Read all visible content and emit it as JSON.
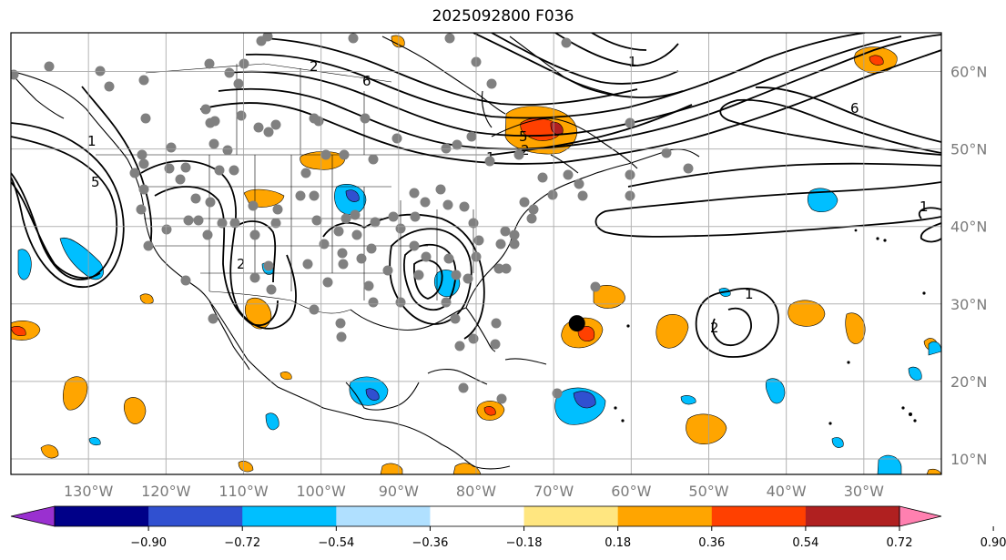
{
  "title": "2025092800 F036",
  "map": {
    "projection": "PlateCarree",
    "lon_range": [
      -140,
      -20
    ],
    "lat_range": [
      8,
      65
    ],
    "gridlines": true,
    "lon_ticks": [
      "130°W",
      "120°W",
      "110°W",
      "100°W",
      "90°W",
      "80°W",
      "70°W",
      "60°W",
      "50°W",
      "40°W",
      "30°W"
    ],
    "lat_ticks": [
      "60°N",
      "50°N",
      "40°N",
      "30°N",
      "20°N",
      "10°N"
    ],
    "contour_labels": [
      "2",
      "6",
      "5",
      "1",
      "2",
      "5",
      "1",
      "6",
      "1",
      "2",
      "1",
      "2",
      "1"
    ],
    "marker": {
      "name": "storm-center",
      "lon": -67,
      "lat": 27.5
    }
  },
  "colorbar": {
    "ticks": [
      "−0.90",
      "−0.72",
      "−0.54",
      "−0.36",
      "−0.18",
      "0.18",
      "0.36",
      "0.54",
      "0.72",
      "0.90"
    ],
    "colors": [
      "#9a30d0",
      "#000088",
      "#3050d0",
      "#00bfff",
      "#b0e0ff",
      "#ffffff",
      "#ffe680",
      "#ffa500",
      "#ff4000",
      "#b02020",
      "#ff80b0"
    ],
    "extend": "both"
  }
}
